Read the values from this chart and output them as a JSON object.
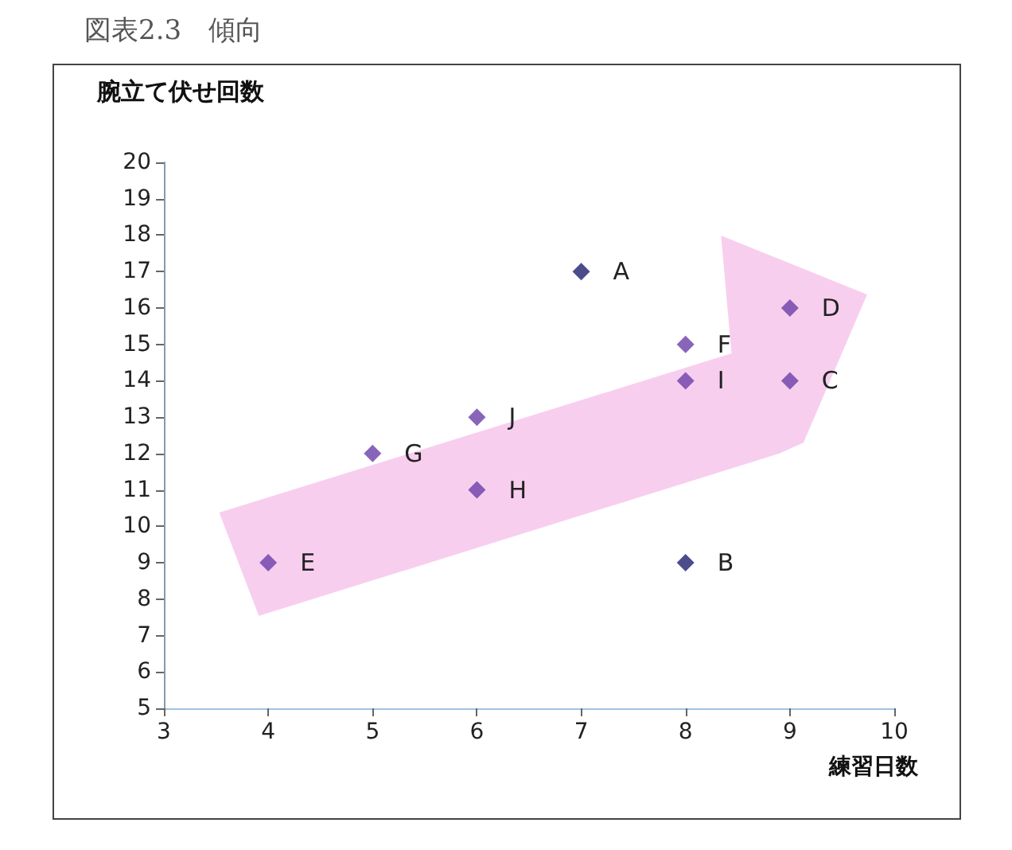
{
  "chart_data": {
    "type": "scatter",
    "title": "図表2.3　傾向",
    "ylabel": "腕立て伏せ回数",
    "xlabel": "練習日数",
    "x": [
      7,
      8,
      9,
      9,
      4,
      8,
      5,
      6,
      8,
      6
    ],
    "values": [
      17,
      9,
      14,
      16,
      9,
      15,
      12,
      11,
      14,
      13
    ],
    "colors": [
      "#1f1f70",
      "#1f1f70",
      "#6a3fa8",
      "#6a3fa8",
      "#6a3fa8",
      "#6a3fa8",
      "#6a3fa8",
      "#6a3fa8",
      "#6a3fa8",
      "#6a3fa8"
    ],
    "marker": "diamond",
    "grid": false,
    "xlim": [
      3,
      10
    ],
    "xticks": [
      3,
      4,
      5,
      6,
      7,
      8,
      9,
      10
    ],
    "ylim": [
      5,
      20
    ],
    "yticks": [
      5,
      6,
      7,
      8,
      9,
      10,
      11,
      12,
      13,
      14,
      15,
      16,
      17,
      18,
      19,
      20
    ],
    "annotations": [
      {
        "text": "A",
        "x": 7,
        "y": 17
      },
      {
        "text": "B",
        "x": 8,
        "y": 9
      },
      {
        "text": "C",
        "x": 9,
        "y": 14
      },
      {
        "text": "D",
        "x": 9,
        "y": 16
      },
      {
        "text": "E",
        "x": 4,
        "y": 9
      },
      {
        "text": "F",
        "x": 8,
        "y": 15
      },
      {
        "text": "G",
        "x": 5,
        "y": 12
      },
      {
        "text": "H",
        "x": 6,
        "y": 11
      },
      {
        "text": "I",
        "x": 8,
        "y": 14
      },
      {
        "text": "J",
        "x": 6,
        "y": 13
      }
    ]
  }
}
